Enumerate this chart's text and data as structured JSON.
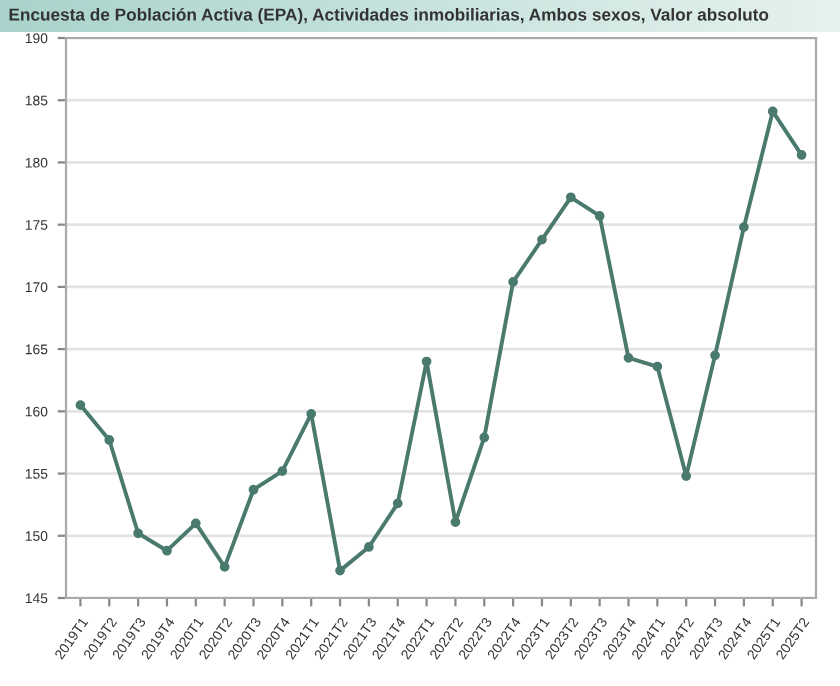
{
  "chart_data": {
    "type": "line",
    "title": "Encuesta de Población Activa (EPA), Actividades inmobiliarias, Ambos sexos, Valor absoluto",
    "categories": [
      "2019T1",
      "2019T2",
      "2019T3",
      "2019T4",
      "2020T1",
      "2020T2",
      "2020T3",
      "2020T4",
      "2021T1",
      "2021T2",
      "2021T3",
      "2021T4",
      "2022T1",
      "2022T2",
      "2022T3",
      "2022T4",
      "2023T1",
      "2023T2",
      "2023T3",
      "2023T4",
      "2024T1",
      "2024T2",
      "2024T3",
      "2024T4",
      "2025T1",
      "2025T2"
    ],
    "series": [
      {
        "color": "#4a7a6e",
        "values": [
          160.5,
          157.7,
          150.2,
          148.8,
          151.0,
          147.5,
          153.7,
          155.2,
          159.8,
          147.2,
          149.1,
          152.6,
          164.0,
          151.1,
          157.9,
          170.4,
          173.8,
          177.2,
          175.7,
          164.3,
          163.6,
          154.8,
          164.5,
          174.8,
          184.1,
          180.6
        ]
      }
    ],
    "ylim": [
      145,
      190
    ],
    "yticks": [
      145,
      150,
      155,
      160,
      165,
      170,
      175,
      180,
      185,
      190
    ],
    "grid": "y",
    "marker": "circle",
    "line_style": "solid",
    "legend": false
  }
}
